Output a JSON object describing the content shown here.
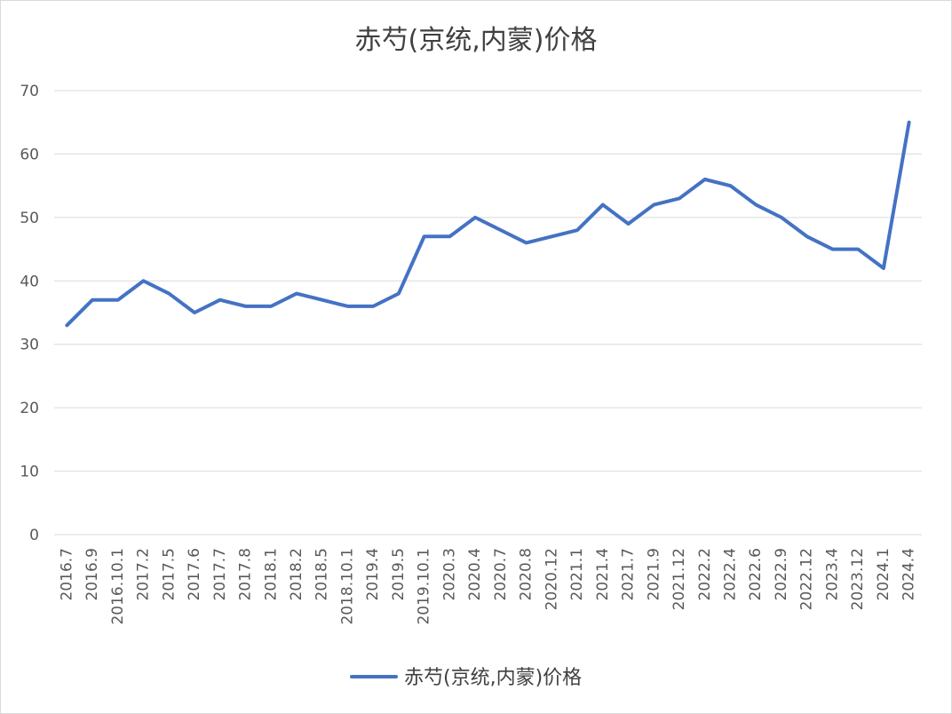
{
  "chart_data": {
    "type": "line",
    "title": "赤芍(京统,内蒙)价格",
    "xlabel": "",
    "ylabel": "",
    "ylim": [
      0,
      70
    ],
    "y_ticks": [
      "0",
      "10",
      "20",
      "30",
      "40",
      "50",
      "60",
      "70"
    ],
    "grid": true,
    "legend_position": "bottom",
    "categories": [
      "2016.7",
      "2016.9",
      "2016.10.1",
      "2017.2",
      "2017.5",
      "2017.6",
      "2017.7",
      "2017.8",
      "2018.1",
      "2018.2",
      "2018.5",
      "2018.10.1",
      "2019.4",
      "2019.5",
      "2019.10.1",
      "2020.3",
      "2020.4",
      "2020.7",
      "2020.8",
      "2020.12",
      "2021.1",
      "2021.4",
      "2021.7",
      "2021.9",
      "2021.12",
      "2022.2",
      "2022.4",
      "2022.6",
      "2022.9",
      "2022.12",
      "2023.4",
      "2023.12",
      "2024.1",
      "2024.4"
    ],
    "series": [
      {
        "name": "赤芍(京统,内蒙)价格",
        "color": "#4472c4",
        "values": [
          33,
          37,
          37,
          40,
          38,
          35,
          37,
          36,
          36,
          38,
          37,
          36,
          36,
          38,
          47,
          47,
          50,
          48,
          46,
          47,
          48,
          52,
          49,
          52,
          53,
          56,
          55,
          52,
          50,
          47,
          45,
          45,
          42,
          65
        ]
      }
    ]
  }
}
